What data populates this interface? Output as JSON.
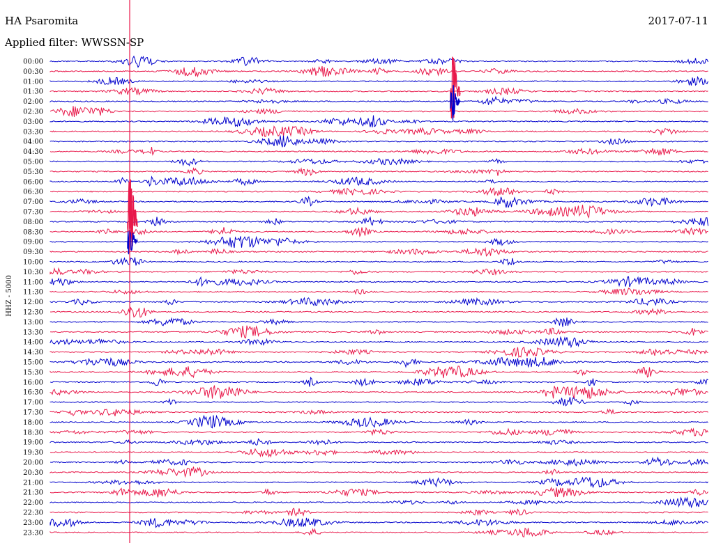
{
  "chart_data": {
    "type": "line",
    "title": "HA Psaromita",
    "subtitle": "Applied filter: WWSSN-SP",
    "date": "2017-07-11",
    "ylabel": "HHZ - 5000",
    "rows": [
      "00:00",
      "00:30",
      "01:00",
      "01:30",
      "02:00",
      "02:30",
      "03:00",
      "03:30",
      "04:00",
      "04:30",
      "05:00",
      "05:30",
      "06:00",
      "06:30",
      "07:00",
      "07:30",
      "08:00",
      "08:30",
      "09:00",
      "09:30",
      "10:00",
      "10:30",
      "11:00",
      "11:30",
      "12:00",
      "12:30",
      "13:00",
      "13:30",
      "14:00",
      "14:30",
      "15:00",
      "15:30",
      "16:00",
      "16:30",
      "17:00",
      "17:30",
      "18:00",
      "18:30",
      "19:00",
      "19:30",
      "20:00",
      "20:30",
      "21:00",
      "21:30",
      "22:00",
      "22:30",
      "23:00",
      "23:30"
    ],
    "row_colors": [
      "#0000cc",
      "#e8184a"
    ],
    "marker_color": "#e8184a",
    "grid": false,
    "legend": "none"
  }
}
